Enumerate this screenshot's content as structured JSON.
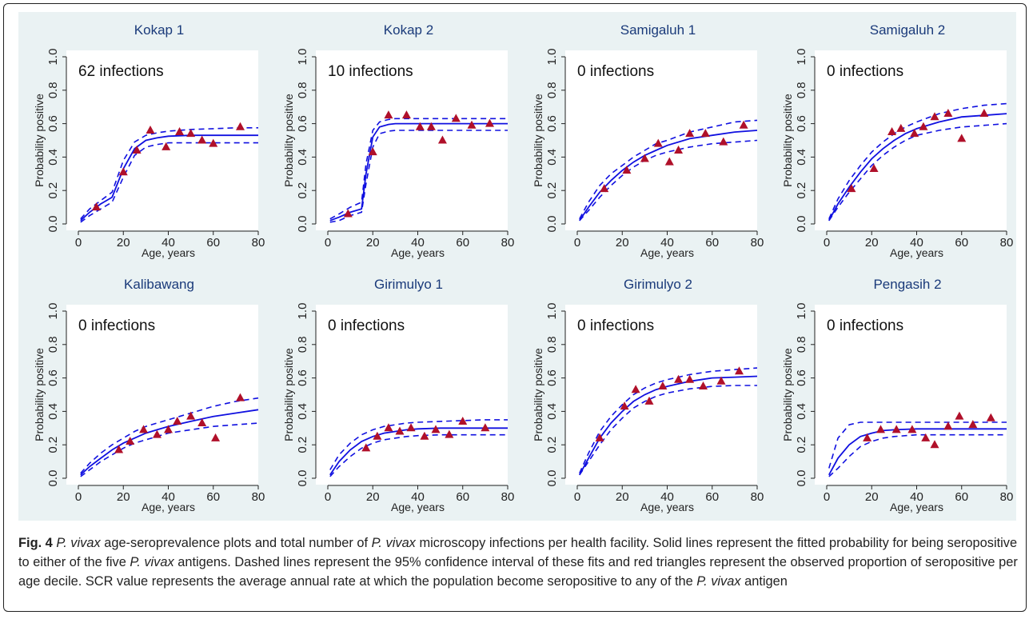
{
  "figure": {
    "colors": {
      "fit": "#1010e0",
      "ci": "#1010e0",
      "points": "#b0102a",
      "title": "#1a3a7a",
      "panel_bg": "#eaf2f3"
    },
    "caption": {
      "label": "Fig. 4",
      "segments": [
        {
          "text": "P. vivax",
          "italic": true
        },
        {
          "text": " age-seroprevalence plots and total number of ",
          "italic": false
        },
        {
          "text": "P. vivax",
          "italic": true
        },
        {
          "text": " microscopy infections per health facility. Solid lines represent the fitted probability for being seropositive to either of the five ",
          "italic": false
        },
        {
          "text": "P. vivax",
          "italic": true
        },
        {
          "text": " antigens. Dashed lines represent the 95% confidence interval of these fits and red triangles represent the observed proportion of seropositive per age decile. SCR value represents the average annual rate at which the population become seropositive to any of the ",
          "italic": false
        },
        {
          "text": "P. vivax",
          "italic": true
        },
        {
          "text": " antigen",
          "italic": false
        }
      ]
    }
  },
  "chart_data": [
    {
      "type": "line",
      "title": "Kokap 1",
      "annotation": "62 infections",
      "xlabel": "Age, years",
      "ylabel": "Probability positive",
      "xlim": [
        0,
        80
      ],
      "ylim": [
        0,
        1
      ],
      "xticks": [
        0,
        20,
        40,
        60,
        80
      ],
      "yticks": [
        "0.0",
        "0.2",
        "0.4",
        "0.6",
        "0.8",
        "1.0"
      ],
      "fit_x": [
        1,
        5,
        10,
        15,
        20,
        25,
        30,
        35,
        40,
        50,
        60,
        70,
        80
      ],
      "fit": [
        0.02,
        0.07,
        0.12,
        0.16,
        0.33,
        0.45,
        0.5,
        0.515,
        0.525,
        0.53,
        0.53,
        0.53,
        0.53
      ],
      "lower": [
        0.01,
        0.05,
        0.09,
        0.13,
        0.28,
        0.41,
        0.46,
        0.475,
        0.485,
        0.485,
        0.485,
        0.485,
        0.485
      ],
      "upper": [
        0.03,
        0.09,
        0.14,
        0.19,
        0.38,
        0.49,
        0.53,
        0.545,
        0.555,
        0.565,
        0.57,
        0.575,
        0.575
      ],
      "points_x": [
        8,
        20,
        26,
        32,
        39,
        45,
        50,
        55,
        60,
        72
      ],
      "points_y": [
        0.1,
        0.31,
        0.44,
        0.56,
        0.46,
        0.55,
        0.54,
        0.5,
        0.48,
        0.58
      ]
    },
    {
      "type": "line",
      "title": "Kokap 2",
      "annotation": "10 infections",
      "xlabel": "Age, years",
      "ylabel": "Probability positive",
      "xlim": [
        0,
        80
      ],
      "ylim": [
        0,
        1
      ],
      "xticks": [
        0,
        20,
        40,
        60,
        80
      ],
      "yticks": [
        "0.0",
        "0.2",
        "0.4",
        "0.6",
        "0.8",
        "1.0"
      ],
      "fit_x": [
        1,
        5,
        10,
        15,
        17,
        20,
        23,
        27,
        30,
        40,
        50,
        60,
        70,
        80
      ],
      "fit": [
        0.02,
        0.04,
        0.07,
        0.09,
        0.3,
        0.52,
        0.58,
        0.595,
        0.6,
        0.6,
        0.6,
        0.6,
        0.6,
        0.6
      ],
      "lower": [
        0.01,
        0.02,
        0.05,
        0.07,
        0.24,
        0.46,
        0.54,
        0.555,
        0.56,
        0.56,
        0.56,
        0.56,
        0.56,
        0.56
      ],
      "upper": [
        0.03,
        0.06,
        0.1,
        0.13,
        0.36,
        0.56,
        0.61,
        0.625,
        0.63,
        0.63,
        0.63,
        0.63,
        0.63,
        0.63
      ],
      "points_x": [
        9,
        20,
        27,
        35,
        41,
        46,
        51,
        57,
        64,
        72
      ],
      "points_y": [
        0.06,
        0.43,
        0.65,
        0.65,
        0.58,
        0.58,
        0.5,
        0.63,
        0.59,
        0.6
      ]
    },
    {
      "type": "line",
      "title": "Samigaluh 1",
      "annotation": "0 infections",
      "xlabel": "Age, years",
      "ylabel": "Probability positive",
      "xlim": [
        0,
        80
      ],
      "ylim": [
        0,
        1
      ],
      "xticks": [
        0,
        20,
        40,
        60,
        80
      ],
      "yticks": [
        "0.0",
        "0.2",
        "0.4",
        "0.6",
        "0.8",
        "1.0"
      ],
      "fit_x": [
        1,
        5,
        10,
        15,
        20,
        25,
        30,
        35,
        40,
        50,
        60,
        70,
        80
      ],
      "fit": [
        0.02,
        0.1,
        0.19,
        0.26,
        0.32,
        0.37,
        0.41,
        0.44,
        0.47,
        0.51,
        0.53,
        0.55,
        0.56
      ],
      "lower": [
        0.02,
        0.08,
        0.16,
        0.23,
        0.29,
        0.34,
        0.38,
        0.41,
        0.43,
        0.46,
        0.48,
        0.49,
        0.5
      ],
      "upper": [
        0.03,
        0.13,
        0.23,
        0.3,
        0.35,
        0.4,
        0.44,
        0.48,
        0.5,
        0.55,
        0.58,
        0.61,
        0.62
      ],
      "points_x": [
        12,
        22,
        30,
        36,
        41,
        45,
        50,
        57,
        65,
        74
      ],
      "points_y": [
        0.21,
        0.32,
        0.39,
        0.48,
        0.37,
        0.44,
        0.54,
        0.54,
        0.49,
        0.59
      ]
    },
    {
      "type": "line",
      "title": "Samigaluh 2",
      "annotation": "0 infections",
      "xlabel": "Age, years",
      "ylabel": "Probability positive",
      "xlim": [
        0,
        80
      ],
      "ylim": [
        0,
        1
      ],
      "xticks": [
        0,
        20,
        40,
        60,
        80
      ],
      "yticks": [
        "0.0",
        "0.2",
        "0.4",
        "0.6",
        "0.8",
        "1.0"
      ],
      "fit_x": [
        1,
        5,
        10,
        15,
        20,
        25,
        30,
        35,
        40,
        50,
        60,
        70,
        80
      ],
      "fit": [
        0.02,
        0.12,
        0.22,
        0.31,
        0.39,
        0.45,
        0.5,
        0.54,
        0.57,
        0.61,
        0.64,
        0.65,
        0.66
      ],
      "lower": [
        0.02,
        0.1,
        0.19,
        0.27,
        0.35,
        0.41,
        0.46,
        0.5,
        0.53,
        0.56,
        0.58,
        0.59,
        0.6
      ],
      "upper": [
        0.03,
        0.15,
        0.26,
        0.35,
        0.43,
        0.49,
        0.54,
        0.58,
        0.61,
        0.66,
        0.69,
        0.71,
        0.72
      ],
      "points_x": [
        11,
        21,
        29,
        33,
        39,
        43,
        48,
        54,
        60,
        70
      ],
      "points_y": [
        0.21,
        0.33,
        0.55,
        0.57,
        0.54,
        0.58,
        0.64,
        0.66,
        0.51,
        0.66
      ]
    },
    {
      "type": "line",
      "title": "Kalibawang",
      "annotation": "0 infections",
      "xlabel": "Age, years",
      "ylabel": "Probability positive",
      "xlim": [
        0,
        80
      ],
      "ylim": [
        0,
        1
      ],
      "xticks": [
        0,
        20,
        40,
        60,
        80
      ],
      "yticks": [
        "0.0",
        "0.2",
        "0.4",
        "0.6",
        "0.8",
        "1.0"
      ],
      "fit_x": [
        1,
        5,
        10,
        15,
        20,
        25,
        30,
        35,
        40,
        50,
        60,
        70,
        80
      ],
      "fit": [
        0.02,
        0.07,
        0.12,
        0.17,
        0.21,
        0.24,
        0.27,
        0.29,
        0.31,
        0.34,
        0.37,
        0.39,
        0.41
      ],
      "lower": [
        0.01,
        0.05,
        0.1,
        0.14,
        0.18,
        0.21,
        0.23,
        0.25,
        0.27,
        0.29,
        0.31,
        0.32,
        0.33
      ],
      "upper": [
        0.03,
        0.09,
        0.15,
        0.2,
        0.24,
        0.28,
        0.31,
        0.33,
        0.35,
        0.39,
        0.43,
        0.46,
        0.48
      ],
      "points_x": [
        18,
        23,
        29,
        35,
        40,
        44,
        50,
        55,
        61,
        72
      ],
      "points_y": [
        0.17,
        0.22,
        0.29,
        0.26,
        0.29,
        0.34,
        0.37,
        0.33,
        0.24,
        0.48
      ]
    },
    {
      "type": "line",
      "title": "Girimulyo 1",
      "annotation": "0 infections",
      "xlabel": "Age, years",
      "ylabel": "Probability positive",
      "xlim": [
        0,
        80
      ],
      "ylim": [
        0,
        1
      ],
      "xticks": [
        0,
        20,
        40,
        60,
        80
      ],
      "yticks": [
        "0.0",
        "0.2",
        "0.4",
        "0.6",
        "0.8",
        "1.0"
      ],
      "fit_x": [
        1,
        5,
        10,
        15,
        20,
        25,
        30,
        35,
        40,
        50,
        60,
        70,
        80
      ],
      "fit": [
        0.02,
        0.1,
        0.17,
        0.22,
        0.25,
        0.27,
        0.28,
        0.29,
        0.295,
        0.3,
        0.3,
        0.3,
        0.3
      ],
      "lower": [
        0.01,
        0.07,
        0.13,
        0.18,
        0.21,
        0.23,
        0.24,
        0.25,
        0.255,
        0.26,
        0.26,
        0.26,
        0.26
      ],
      "upper": [
        0.05,
        0.14,
        0.21,
        0.26,
        0.29,
        0.31,
        0.32,
        0.33,
        0.335,
        0.34,
        0.345,
        0.35,
        0.35
      ],
      "points_x": [
        17,
        22,
        27,
        32,
        37,
        43,
        48,
        54,
        60,
        70
      ],
      "points_y": [
        0.18,
        0.25,
        0.3,
        0.28,
        0.3,
        0.25,
        0.29,
        0.26,
        0.34,
        0.3
      ]
    },
    {
      "type": "line",
      "title": "Girimulyo 2",
      "annotation": "0 infections",
      "xlabel": "Age, years",
      "ylabel": "Probability positive",
      "xlim": [
        0,
        80
      ],
      "ylim": [
        0,
        1
      ],
      "xticks": [
        0,
        20,
        40,
        60,
        80
      ],
      "yticks": [
        "0.0",
        "0.2",
        "0.4",
        "0.6",
        "0.8",
        "1.0"
      ],
      "fit_x": [
        1,
        5,
        10,
        15,
        20,
        25,
        30,
        35,
        40,
        50,
        60,
        70,
        80
      ],
      "fit": [
        0.02,
        0.12,
        0.24,
        0.33,
        0.4,
        0.46,
        0.5,
        0.53,
        0.55,
        0.58,
        0.6,
        0.605,
        0.61
      ],
      "lower": [
        0.02,
        0.1,
        0.2,
        0.29,
        0.36,
        0.42,
        0.46,
        0.49,
        0.51,
        0.535,
        0.55,
        0.555,
        0.555
      ],
      "upper": [
        0.03,
        0.15,
        0.28,
        0.37,
        0.44,
        0.5,
        0.54,
        0.57,
        0.59,
        0.62,
        0.64,
        0.65,
        0.66
      ],
      "points_x": [
        10,
        21,
        26,
        32,
        38,
        45,
        50,
        56,
        64,
        72
      ],
      "points_y": [
        0.24,
        0.43,
        0.53,
        0.46,
        0.55,
        0.59,
        0.59,
        0.55,
        0.58,
        0.64
      ]
    },
    {
      "type": "line",
      "title": "Pengasih 2",
      "annotation": "0 infections",
      "xlabel": "Age, years",
      "ylabel": "Probability positive",
      "xlim": [
        0,
        80
      ],
      "ylim": [
        0,
        1
      ],
      "xticks": [
        0,
        20,
        40,
        60,
        80
      ],
      "yticks": [
        "0.0",
        "0.2",
        "0.4",
        "0.6",
        "0.8",
        "1.0"
      ],
      "fit_x": [
        1,
        5,
        10,
        15,
        20,
        25,
        30,
        40,
        50,
        60,
        70,
        80
      ],
      "fit": [
        0.02,
        0.12,
        0.2,
        0.25,
        0.27,
        0.285,
        0.29,
        0.295,
        0.295,
        0.295,
        0.295,
        0.295
      ],
      "lower": [
        0.01,
        0.06,
        0.13,
        0.19,
        0.22,
        0.24,
        0.25,
        0.26,
        0.26,
        0.26,
        0.26,
        0.26
      ],
      "upper": [
        0.06,
        0.24,
        0.32,
        0.335,
        0.335,
        0.335,
        0.335,
        0.335,
        0.335,
        0.335,
        0.335,
        0.335
      ],
      "points_x": [
        18,
        24,
        31,
        38,
        44,
        48,
        54,
        59,
        65,
        73
      ],
      "points_y": [
        0.24,
        0.29,
        0.29,
        0.29,
        0.24,
        0.2,
        0.31,
        0.37,
        0.32,
        0.36
      ]
    }
  ]
}
